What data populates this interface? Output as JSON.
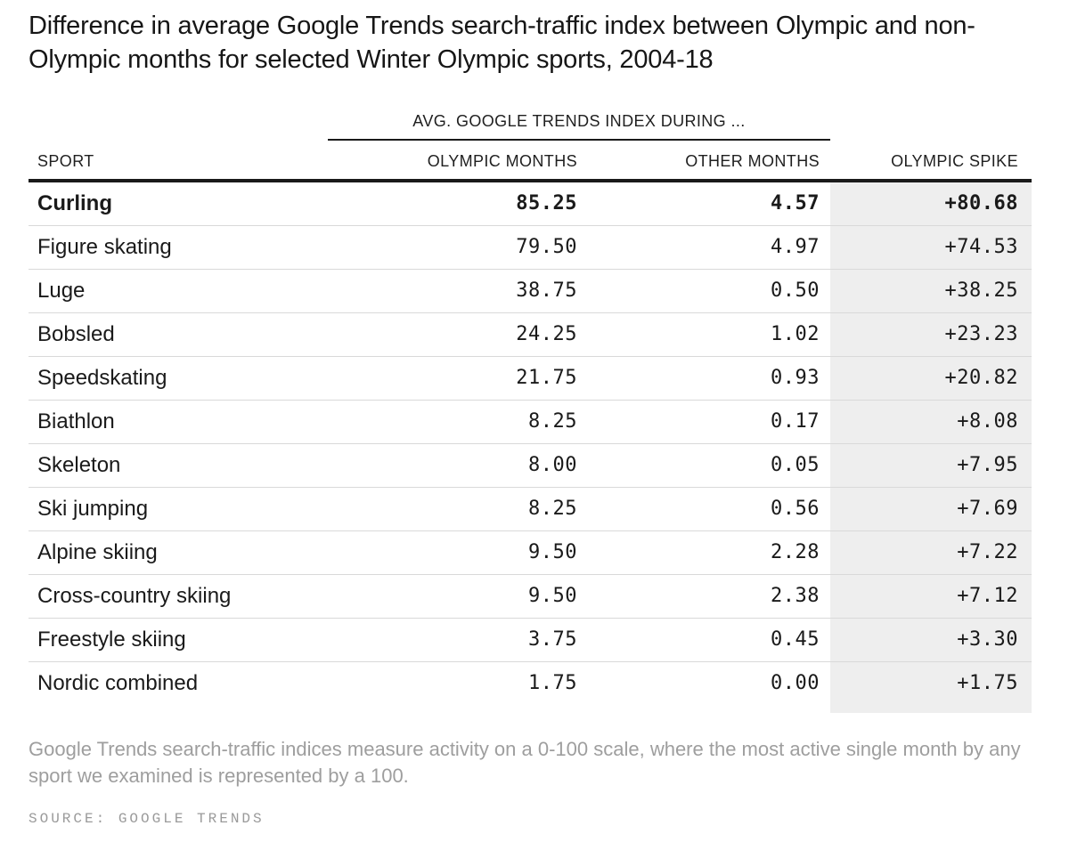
{
  "title": "Difference in average Google Trends search-traffic index between Olympic and non-Olympic months for selected Winter Olympic sports, 2004-18",
  "table": {
    "span_header": "AVG. GOOGLE TRENDS INDEX DURING ...",
    "columns": [
      "SPORT",
      "OLYMPIC MONTHS",
      "OTHER MONTHS",
      "OLYMPIC SPIKE"
    ],
    "rows": [
      {
        "sport": "Curling",
        "olympic_months": "85.25",
        "other_months": "4.57",
        "olympic_spike": "+80.68",
        "bold": true
      },
      {
        "sport": "Figure skating",
        "olympic_months": "79.50",
        "other_months": "4.97",
        "olympic_spike": "+74.53",
        "bold": false
      },
      {
        "sport": "Luge",
        "olympic_months": "38.75",
        "other_months": "0.50",
        "olympic_spike": "+38.25",
        "bold": false
      },
      {
        "sport": "Bobsled",
        "olympic_months": "24.25",
        "other_months": "1.02",
        "olympic_spike": "+23.23",
        "bold": false
      },
      {
        "sport": "Speedskating",
        "olympic_months": "21.75",
        "other_months": "0.93",
        "olympic_spike": "+20.82",
        "bold": false
      },
      {
        "sport": "Biathlon",
        "olympic_months": "8.25",
        "other_months": "0.17",
        "olympic_spike": "+8.08",
        "bold": false
      },
      {
        "sport": "Skeleton",
        "olympic_months": "8.00",
        "other_months": "0.05",
        "olympic_spike": "+7.95",
        "bold": false
      },
      {
        "sport": "Ski jumping",
        "olympic_months": "8.25",
        "other_months": "0.56",
        "olympic_spike": "+7.69",
        "bold": false
      },
      {
        "sport": "Alpine skiing",
        "olympic_months": "9.50",
        "other_months": "2.28",
        "olympic_spike": "+7.22",
        "bold": false
      },
      {
        "sport": "Cross-country skiing",
        "olympic_months": "9.50",
        "other_months": "2.38",
        "olympic_spike": "+7.12",
        "bold": false
      },
      {
        "sport": "Freestyle skiing",
        "olympic_months": "3.75",
        "other_months": "0.45",
        "olympic_spike": "+3.30",
        "bold": false
      },
      {
        "sport": "Nordic combined",
        "olympic_months": "1.75",
        "other_months": "0.00",
        "olympic_spike": "+1.75",
        "bold": false
      }
    ]
  },
  "footnote": "Google Trends search-traffic indices measure activity on a 0-100 scale, where the most active single month by any sport we examined is represented by a 100.",
  "source": "SOURCE: GOOGLE TRENDS",
  "colors": {
    "text": "#1a1a1a",
    "muted_text": "#9e9e9e",
    "spike_column_bg": "#eeeeee",
    "row_divider": "#d9d9d9",
    "strong_border": "#1a1a1a"
  },
  "chart_data": {
    "type": "table",
    "title": "Difference in average Google Trends search-traffic index between Olympic and non-Olympic months for selected Winter Olympic sports, 2004-18",
    "categories": [
      "Curling",
      "Figure skating",
      "Luge",
      "Bobsled",
      "Speedskating",
      "Biathlon",
      "Skeleton",
      "Ski jumping",
      "Alpine skiing",
      "Cross-country skiing",
      "Freestyle skiing",
      "Nordic combined"
    ],
    "series": [
      {
        "name": "Olympic months",
        "values": [
          85.25,
          79.5,
          38.75,
          24.25,
          21.75,
          8.25,
          8.0,
          8.25,
          9.5,
          9.5,
          3.75,
          1.75
        ]
      },
      {
        "name": "Other months",
        "values": [
          4.57,
          4.97,
          0.5,
          1.02,
          0.93,
          0.17,
          0.05,
          0.56,
          2.28,
          2.38,
          0.45,
          0.0
        ]
      },
      {
        "name": "Olympic spike",
        "values": [
          80.68,
          74.53,
          38.25,
          23.23,
          20.82,
          8.08,
          7.95,
          7.69,
          7.22,
          7.12,
          3.3,
          1.75
        ]
      }
    ],
    "notes": "Google Trends search-traffic indices measure activity on a 0-100 scale, where the most active single month by any sport we examined is represented by a 100.",
    "source": "SOURCE: GOOGLE TRENDS"
  }
}
